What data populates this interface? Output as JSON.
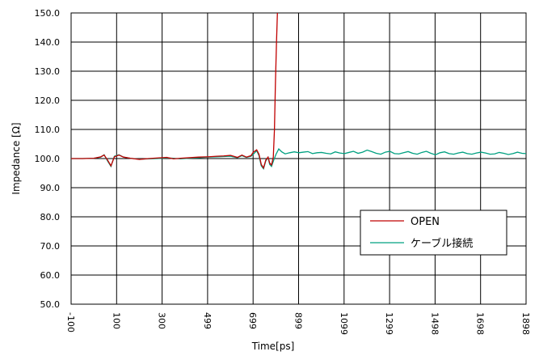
{
  "chart_data": {
    "type": "line",
    "xlabel": "Time[ps]",
    "ylabel": "Impedance [Ω]",
    "xlim": [
      -100,
      1898
    ],
    "ylim": [
      50.0,
      150.0
    ],
    "x_ticks": [
      "-100",
      "100",
      "300",
      "499",
      "699",
      "899",
      "1099",
      "1299",
      "1498",
      "1698",
      "1898"
    ],
    "y_ticks": [
      "50.0",
      "60.0",
      "70.0",
      "80.0",
      "90.0",
      "100.0",
      "110.0",
      "120.0",
      "130.0",
      "140.0",
      "150.0"
    ],
    "grid": true,
    "legend_position": "bottom-right",
    "series": [
      {
        "name": "OPEN",
        "color": "#c00000",
        "points": [
          [
            -100,
            100
          ],
          [
            -50,
            100
          ],
          [
            0,
            100.1
          ],
          [
            30,
            100.6
          ],
          [
            45,
            101.2
          ],
          [
            60,
            99.5
          ],
          [
            75,
            97.5
          ],
          [
            90,
            100.6
          ],
          [
            110,
            101.2
          ],
          [
            130,
            100.5
          ],
          [
            160,
            100.1
          ],
          [
            200,
            99.7
          ],
          [
            240,
            100
          ],
          [
            280,
            100.2
          ],
          [
            320,
            100.4
          ],
          [
            350,
            99.9
          ],
          [
            380,
            100.1
          ],
          [
            420,
            100.3
          ],
          [
            460,
            100.5
          ],
          [
            500,
            100.6
          ],
          [
            540,
            100.8
          ],
          [
            570,
            100.9
          ],
          [
            600,
            101.1
          ],
          [
            630,
            100.4
          ],
          [
            650,
            101.2
          ],
          [
            670,
            100.5
          ],
          [
            690,
            101
          ],
          [
            700,
            102.2
          ],
          [
            715,
            103
          ],
          [
            725,
            101.5
          ],
          [
            735,
            98
          ],
          [
            745,
            96.8
          ],
          [
            755,
            99.5
          ],
          [
            765,
            100.5
          ],
          [
            772,
            98.5
          ],
          [
            780,
            97.8
          ],
          [
            788,
            100.5
          ],
          [
            793,
            110
          ],
          [
            797,
            125
          ],
          [
            802,
            140
          ],
          [
            806,
            150
          ]
        ]
      },
      {
        "name": "ケーブル接続",
        "color": "#00a080",
        "points": [
          [
            -100,
            100
          ],
          [
            -50,
            100
          ],
          [
            0,
            100.1
          ],
          [
            30,
            100.5
          ],
          [
            45,
            101.3
          ],
          [
            60,
            99.2
          ],
          [
            75,
            97.3
          ],
          [
            90,
            100.8
          ],
          [
            110,
            101.3
          ],
          [
            130,
            100.5
          ],
          [
            160,
            100.1
          ],
          [
            200,
            99.8
          ],
          [
            240,
            99.9
          ],
          [
            280,
            100
          ],
          [
            320,
            100.2
          ],
          [
            350,
            100.1
          ],
          [
            380,
            99.9
          ],
          [
            420,
            100.1
          ],
          [
            460,
            100.3
          ],
          [
            500,
            100.5
          ],
          [
            540,
            100.6
          ],
          [
            570,
            100.7
          ],
          [
            600,
            100.8
          ],
          [
            630,
            100.3
          ],
          [
            650,
            101
          ],
          [
            670,
            100.4
          ],
          [
            690,
            100.8
          ],
          [
            700,
            101.5
          ],
          [
            715,
            102.7
          ],
          [
            725,
            101
          ],
          [
            735,
            97.5
          ],
          [
            745,
            96.5
          ],
          [
            755,
            99.2
          ],
          [
            765,
            100.4
          ],
          [
            772,
            98
          ],
          [
            780,
            97.3
          ],
          [
            790,
            99.5
          ],
          [
            800,
            101.5
          ],
          [
            812,
            103.3
          ],
          [
            825,
            102.3
          ],
          [
            840,
            101.6
          ],
          [
            860,
            102
          ],
          [
            880,
            102.3
          ],
          [
            900,
            102
          ],
          [
            920,
            102.2
          ],
          [
            940,
            102.4
          ],
          [
            960,
            101.7
          ],
          [
            980,
            102
          ],
          [
            1000,
            102.1
          ],
          [
            1020,
            101.8
          ],
          [
            1040,
            101.6
          ],
          [
            1060,
            102.3
          ],
          [
            1080,
            101.9
          ],
          [
            1100,
            101.7
          ],
          [
            1120,
            102.1
          ],
          [
            1140,
            102.5
          ],
          [
            1160,
            101.8
          ],
          [
            1180,
            102.2
          ],
          [
            1200,
            102.9
          ],
          [
            1220,
            102.4
          ],
          [
            1240,
            101.8
          ],
          [
            1260,
            101.5
          ],
          [
            1280,
            102.2
          ],
          [
            1300,
            102.5
          ],
          [
            1320,
            101.7
          ],
          [
            1340,
            101.6
          ],
          [
            1360,
            102
          ],
          [
            1380,
            102.4
          ],
          [
            1400,
            101.8
          ],
          [
            1420,
            101.5
          ],
          [
            1440,
            102.1
          ],
          [
            1460,
            102.5
          ],
          [
            1480,
            101.8
          ],
          [
            1500,
            101.3
          ],
          [
            1520,
            102
          ],
          [
            1540,
            102.3
          ],
          [
            1560,
            101.7
          ],
          [
            1580,
            101.5
          ],
          [
            1600,
            101.9
          ],
          [
            1620,
            102.2
          ],
          [
            1640,
            101.7
          ],
          [
            1660,
            101.5
          ],
          [
            1680,
            101.9
          ],
          [
            1700,
            102.2
          ],
          [
            1720,
            101.9
          ],
          [
            1740,
            101.5
          ],
          [
            1760,
            101.6
          ],
          [
            1780,
            102.1
          ],
          [
            1800,
            101.8
          ],
          [
            1820,
            101.4
          ],
          [
            1840,
            101.7
          ],
          [
            1860,
            102.2
          ],
          [
            1880,
            101.8
          ],
          [
            1898,
            101.7
          ]
        ]
      }
    ]
  }
}
